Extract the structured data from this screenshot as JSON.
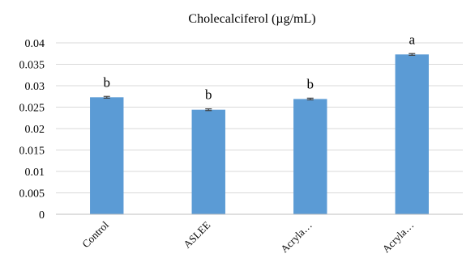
{
  "chart_data": {
    "type": "bar",
    "title": "Cholecalciferol (µg/mL)",
    "categories": [
      "Control",
      "ASLEE",
      "Acryla…",
      "Acryla…"
    ],
    "values": [
      0.0273,
      0.0244,
      0.0269,
      0.0373
    ],
    "errors": [
      0.0002,
      0.0002,
      0.0002,
      0.0002
    ],
    "significance_letters": [
      "b",
      "b",
      "b",
      "a"
    ],
    "ylim": [
      0,
      0.04
    ],
    "yticks": [
      0,
      0.005,
      0.01,
      0.015,
      0.02,
      0.025,
      0.03,
      0.035,
      0.04
    ],
    "ytick_labels": [
      "0",
      "0.005",
      "0.01",
      "0.015",
      "0.02",
      "0.025",
      "0.03",
      "0.035",
      "0.04"
    ],
    "xlabel": "",
    "ylabel": "",
    "grid": true,
    "legend": "none",
    "bar_color": "#5b9bd5"
  }
}
